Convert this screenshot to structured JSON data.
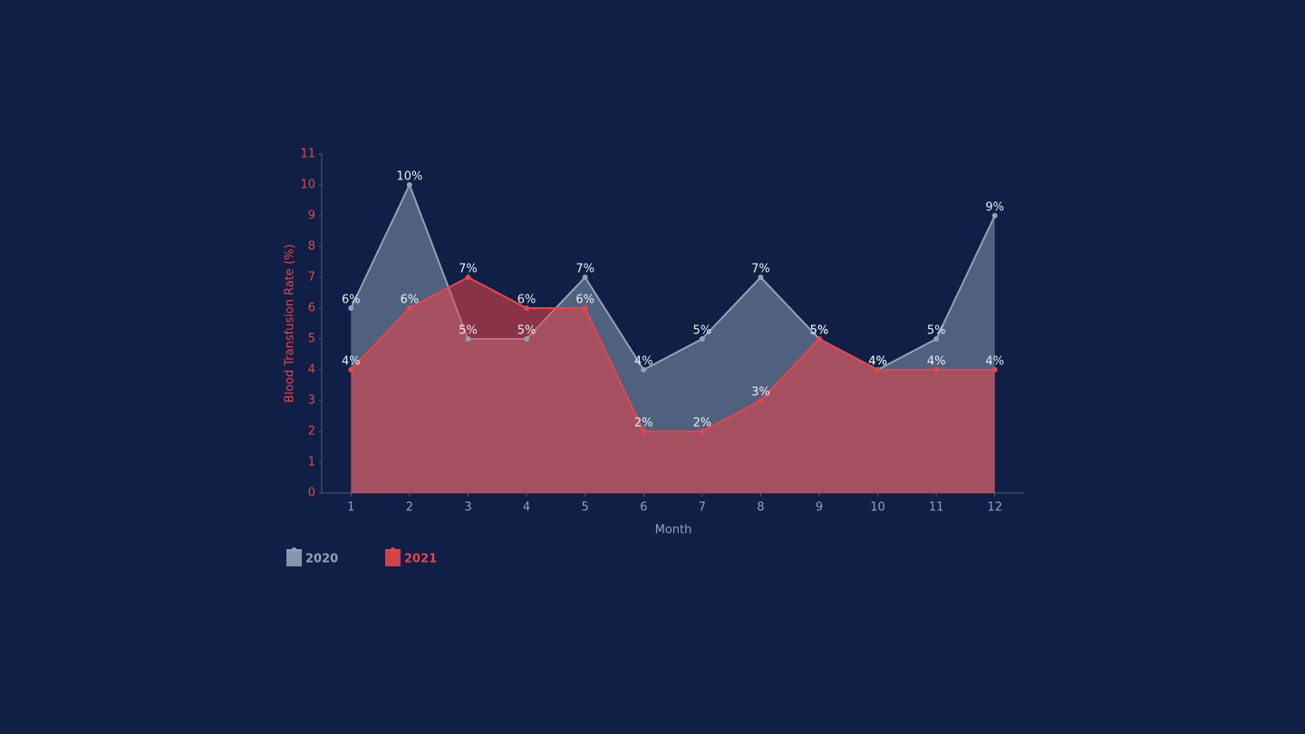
{
  "chart_data": {
    "type": "area",
    "x": [
      1,
      2,
      3,
      4,
      5,
      6,
      7,
      8,
      9,
      10,
      11,
      12
    ],
    "xlim": [
      0.5,
      12.5
    ],
    "xticks": [
      1,
      2,
      3,
      4,
      5,
      6,
      7,
      8,
      9,
      10,
      11,
      12
    ],
    "ylim": [
      0,
      11
    ],
    "yticks": [
      0,
      1,
      2,
      3,
      4,
      5,
      6,
      7,
      8,
      9,
      10,
      11
    ],
    "x_label": "Month",
    "y_label": "Blood Transfusion Rate (%)",
    "series": [
      {
        "name": "2020",
        "color": "#8fa3b8",
        "values": [
          6,
          10,
          5,
          5,
          7,
          4,
          5,
          7,
          5,
          4,
          5,
          9
        ],
        "value_labels": [
          "6%",
          "10%",
          "5%",
          "5%",
          "7%",
          "4%",
          "5%",
          "7%",
          "5%",
          "4%",
          "5%",
          "9%"
        ]
      },
      {
        "name": "2021",
        "color": "#ea434a",
        "values": [
          4,
          6,
          7,
          6,
          6,
          2,
          2,
          3,
          5,
          4,
          4,
          4
        ],
        "value_labels": [
          "4%",
          "6%",
          "7%",
          "6%",
          "6%",
          "2%",
          "2%",
          "3%",
          "5%",
          "4%",
          "4%",
          "4%"
        ]
      }
    ]
  }
}
